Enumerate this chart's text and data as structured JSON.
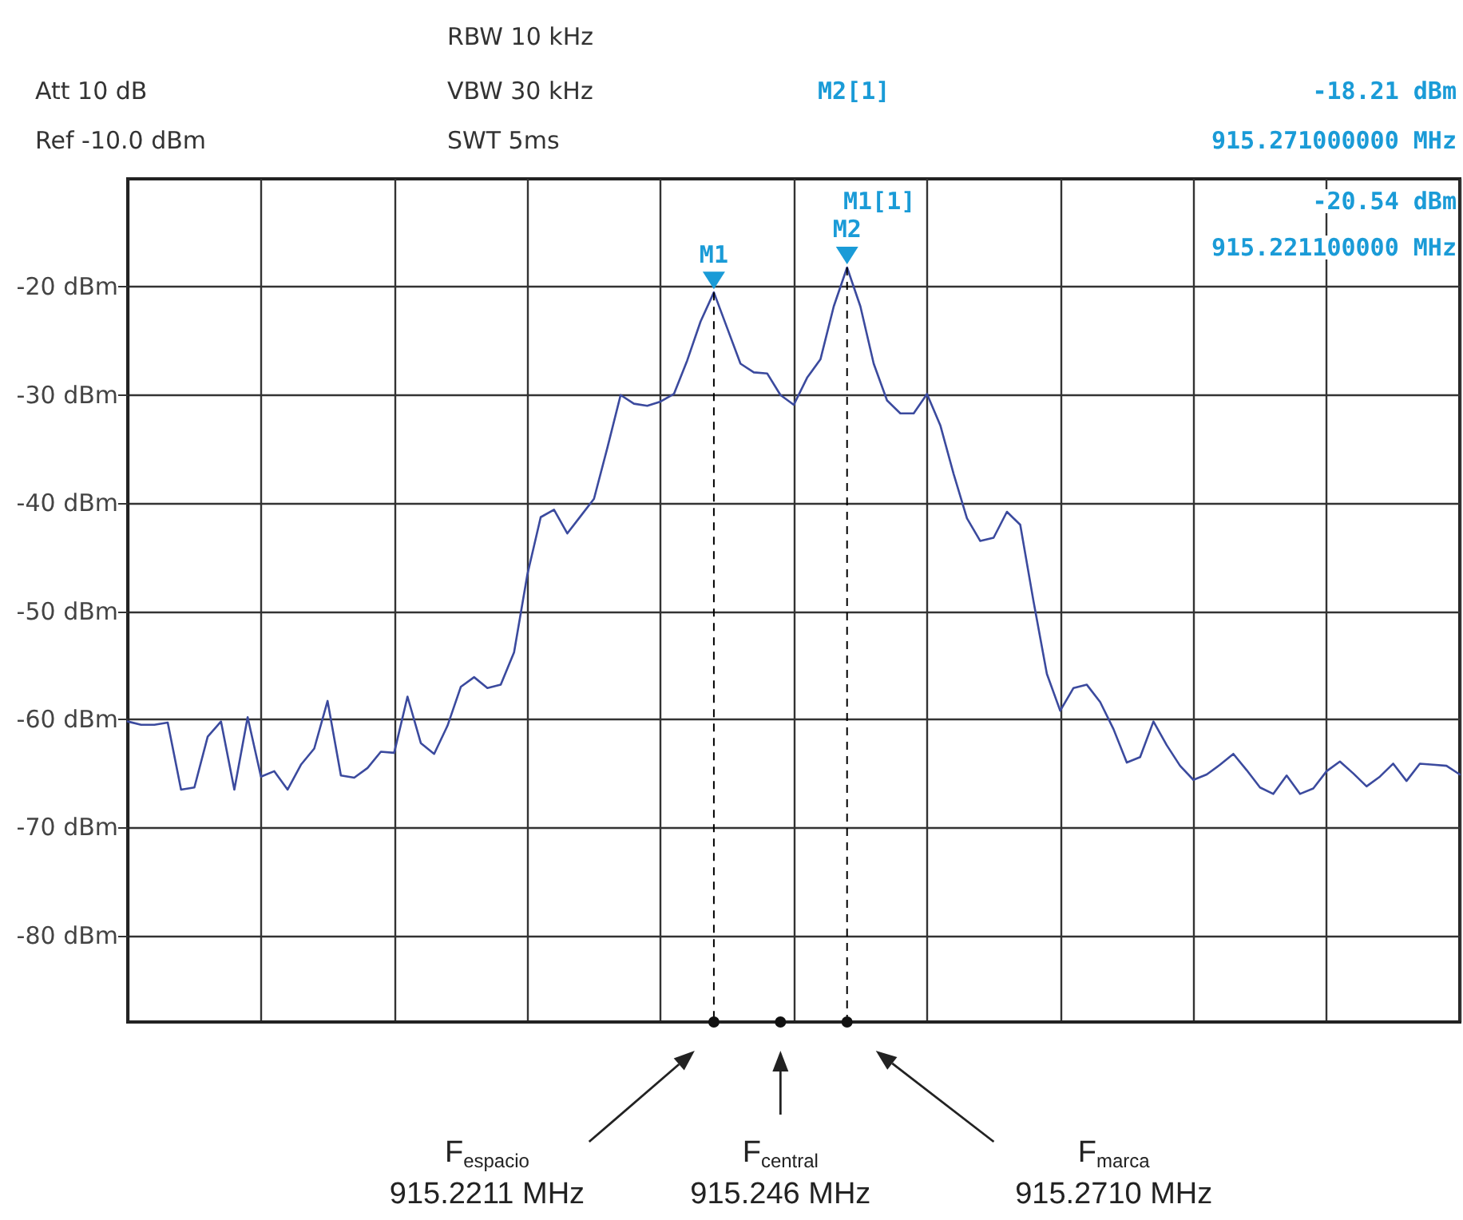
{
  "chart_data": {
    "type": "line",
    "ylim": [
      -88,
      -10
    ],
    "categories": [
      null,
      null,
      null,
      null,
      null,
      null,
      null,
      null,
      null,
      null,
      null,
      null,
      null,
      null,
      null,
      null,
      null,
      null,
      null,
      null,
      null,
      null,
      null,
      null,
      null,
      null,
      null,
      null,
      null,
      null,
      null,
      null,
      null,
      null,
      null,
      null,
      null,
      null,
      null,
      null,
      null,
      null,
      null,
      null,
      null,
      null,
      null,
      null,
      null,
      null,
      null,
      null,
      null,
      null,
      null,
      null,
      null,
      null,
      null,
      null,
      null,
      null,
      null,
      null,
      null,
      null,
      null,
      null,
      null,
      null,
      null,
      null,
      null,
      null,
      null,
      null,
      null,
      null,
      null,
      null,
      null,
      null,
      null,
      null,
      null,
      null,
      null,
      null,
      null,
      null,
      null,
      null,
      null,
      null,
      null,
      null,
      null,
      null,
      null,
      null,
      null
    ],
    "yticks": [
      {
        "value": -80,
        "label": "-80 dBm"
      },
      {
        "value": -70,
        "label": "-70 dBm"
      },
      {
        "value": -60,
        "label": "-60 dBm"
      },
      {
        "value": -50,
        "label": "-50 dBm"
      },
      {
        "value": -40,
        "label": "-40 dBm"
      },
      {
        "value": -30,
        "label": "-30 dBm"
      },
      {
        "value": -20,
        "label": "-20 dBm"
      }
    ],
    "tick_labels": "y",
    "grid": true,
    "line_style": "solid",
    "series": [
      {
        "color": "#3b4a9e",
        "values": [
          -60.2,
          -60.5,
          -60.5,
          -60.3,
          -66.5,
          -66.3,
          -61.6,
          -60.2,
          -66.5,
          -59.8,
          -65.3,
          -64.8,
          -66.5,
          -64.2,
          -62.7,
          -58.3,
          -65.2,
          -65.4,
          -64.5,
          -63,
          -63.1,
          -57.9,
          -62.2,
          -63.2,
          -60.6,
          -57,
          -56.1,
          -57.1,
          -56.8,
          -53.8,
          -46.6,
          -41.3,
          -40.6,
          -42.8,
          -41.2,
          -39.6,
          -34.9,
          -30,
          -30.8,
          -31,
          -30.6,
          -29.9,
          -26.8,
          -23.2,
          -20.5,
          -23.8,
          -27.1,
          -27.9,
          -28,
          -30,
          -30.9,
          -28.4,
          -26.7,
          -21.8,
          -18.2,
          -21.8,
          -27.1,
          -30.5,
          -31.7,
          -31.7,
          -29.9,
          -32.8,
          -37.3,
          -41.4,
          -43.5,
          -43.2,
          -40.8,
          -42,
          -49.1,
          -55.8,
          -59.2,
          -57.1,
          -56.8,
          -58.4,
          -60.9,
          -64,
          -63.5,
          -60.2,
          -62.4,
          -64.3,
          -65.6,
          -65.1,
          -64.2,
          -63.2,
          -64.7,
          -66.3,
          -66.9,
          -65.2,
          -66.9,
          -66.4,
          -64.8,
          -63.9,
          -65,
          -66.2,
          -65.3,
          -64.1,
          -65.7,
          -64.1,
          -64.2,
          -64.3,
          -65.1
        ]
      }
    ],
    "annotations": [
      "Att 10 dB",
      "Ref -10.0 dBm",
      "RBW 10 kHz",
      "VBW 30 kHz",
      "SWT 5ms",
      "M2[1]",
      "-18.21 dBm",
      "915.271000000 MHz",
      "M1[1]",
      "-20.54 dBm",
      "915.221100000 MHz",
      {
        "text": "M1",
        "y": -20.54
      },
      {
        "text": "M2",
        "y": -18.21
      },
      "F$_{espacio}$\n915.2211 MHz",
      "F$_{central}$\n915.246 MHz",
      "F$_{marca}$\n915.2710 MHz"
    ]
  }
}
